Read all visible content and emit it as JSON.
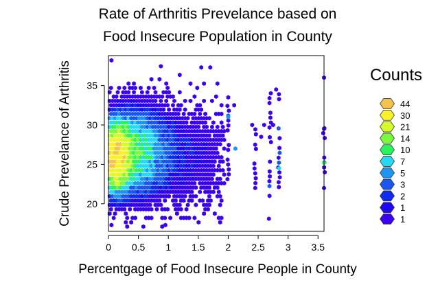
{
  "chart_data": {
    "type": "heatmap",
    "subtype": "hexbin",
    "title_lines": [
      "Rate of Arthritis Prevelance based on",
      "Food Insecure Population in County"
    ],
    "xlabel": "Percentgage of Food Insecure People in County",
    "ylabel": "Crude Prevelance of Arthritis",
    "xlim": [
      0,
      3.6
    ],
    "ylim": [
      16.5,
      38.8
    ],
    "x_ticks": [
      {
        "value": 0,
        "label": "0"
      },
      {
        "value": 0.5,
        "label": "0.5"
      },
      {
        "value": 1,
        "label": "1"
      },
      {
        "value": 1.5,
        "label": "1.5"
      },
      {
        "value": 2,
        "label": "2"
      },
      {
        "value": 2.5,
        "label": "2.5"
      },
      {
        "value": 3,
        "label": "3"
      },
      {
        "value": 3.5,
        "label": "3.5"
      }
    ],
    "y_ticks": [
      {
        "value": 20,
        "label": "20"
      },
      {
        "value": 25,
        "label": "25"
      },
      {
        "value": 30,
        "label": "30"
      },
      {
        "value": 35,
        "label": "35"
      }
    ],
    "grid": false,
    "legend_position": "right",
    "legend": {
      "title": "Counts",
      "entries": [
        {
          "label": "44",
          "color": "#f4c24e"
        },
        {
          "label": "30",
          "color": "#f9f22a"
        },
        {
          "label": "21",
          "color": "#d6fb2b"
        },
        {
          "label": "14",
          "color": "#78fb3a"
        },
        {
          "label": "10",
          "color": "#2af45c"
        },
        {
          "label": "7",
          "color": "#25d9f6"
        },
        {
          "label": "5",
          "color": "#1e95f4"
        },
        {
          "label": "3",
          "color": "#1a57f1"
        },
        {
          "label": "2",
          "color": "#0f2bf2"
        },
        {
          "label": "1",
          "color": "#2007f3"
        },
        {
          "label": "1",
          "color": "#3a00f0"
        }
      ]
    },
    "density_clusters": [
      {
        "x": 0.12,
        "y": 26.0,
        "sx": 0.14,
        "sy": 2.2,
        "peak": 44
      },
      {
        "x": 0.35,
        "y": 26.5,
        "sx": 0.3,
        "sy": 3.0,
        "peak": 12
      },
      {
        "x": 0.8,
        "y": 26.5,
        "sx": 0.35,
        "sy": 3.5,
        "peak": 3
      },
      {
        "x": 1.6,
        "y": 26.0,
        "sx": 0.35,
        "sy": 4.0,
        "peak": 1.2
      }
    ],
    "outlier_points": [
      {
        "x": 0.05,
        "y": 38.2,
        "count": 1
      },
      {
        "x": 0.05,
        "y": 17.3,
        "count": 1
      },
      {
        "x": 0.95,
        "y": 17.3,
        "count": 1
      },
      {
        "x": 1.55,
        "y": 37.3,
        "count": 1
      },
      {
        "x": 1.7,
        "y": 37.3,
        "count": 1
      },
      {
        "x": 2.0,
        "y": 33.5,
        "count": 1
      },
      {
        "x": 2.0,
        "y": 31.0,
        "count": 5
      },
      {
        "x": 2.1,
        "y": 32.5,
        "count": 1
      },
      {
        "x": 2.12,
        "y": 27.0,
        "count": 5
      },
      {
        "x": 2.4,
        "y": 30.0,
        "count": 1
      },
      {
        "x": 2.45,
        "y": 27.5,
        "count": 1
      },
      {
        "x": 2.55,
        "y": 28.5,
        "count": 1
      },
      {
        "x": 2.6,
        "y": 30.0,
        "count": 1
      },
      {
        "x": 2.68,
        "y": 18.1,
        "count": 1
      },
      {
        "x": 2.75,
        "y": 30.0,
        "count": 1
      },
      {
        "x": 2.8,
        "y": 34.5,
        "count": 1
      },
      {
        "x": 2.85,
        "y": 24.5,
        "count": 7
      },
      {
        "x": 3.6,
        "y": 36.0,
        "count": 1
      },
      {
        "x": 3.6,
        "y": 25.2,
        "count": 10
      },
      {
        "x": 3.6,
        "y": 22.0,
        "count": 1
      },
      {
        "x": 3.6,
        "y": 29.5,
        "count": 1
      }
    ],
    "column_bands": [
      {
        "x": 2.0,
        "y0": 22.5,
        "y1": 32.5
      },
      {
        "x": 2.45,
        "y0": 22.0,
        "y1": 30.0
      },
      {
        "x": 2.7,
        "y0": 21.0,
        "y1": 34.5
      },
      {
        "x": 2.85,
        "y0": 21.5,
        "y1": 34.5
      },
      {
        "x": 3.6,
        "y0": 24.0,
        "y1": 30.0
      }
    ]
  }
}
